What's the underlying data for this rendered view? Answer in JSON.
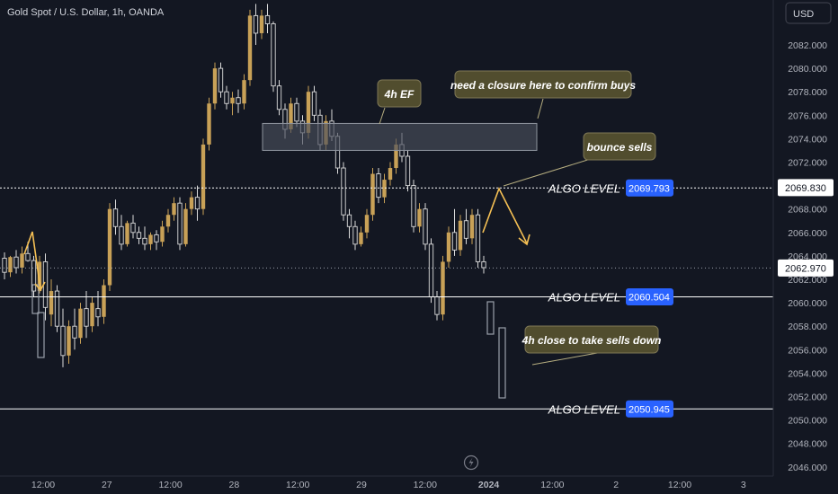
{
  "header": {
    "symbol_title": "Gold Spot / U.S. Dollar, 1h, OANDA"
  },
  "price_scale": {
    "currency": "USD",
    "ticks": [
      "2082.000",
      "2080.000",
      "2078.000",
      "2076.000",
      "2074.000",
      "2072.000",
      "2070.000",
      "2068.000",
      "2066.000",
      "2064.000",
      "2062.000",
      "2060.000",
      "2058.000",
      "2056.000",
      "2054.000",
      "2052.000",
      "2050.000",
      "2048.000",
      "2046.000"
    ],
    "crosshair_price": "2069.830",
    "last_price": "2062.970"
  },
  "time_axis": {
    "ticks": [
      "12:00",
      "27",
      "12:00",
      "28",
      "12:00",
      "29",
      "12:00",
      "2024",
      "12:00",
      "2",
      "12:00",
      "3"
    ]
  },
  "algo_levels": [
    {
      "label": "ALGO LEVEL",
      "value": "2069.793",
      "price": 2069.793
    },
    {
      "label": "ALGO LEVEL",
      "value": "2060.504",
      "price": 2060.504
    },
    {
      "label": "ALGO LEVEL",
      "value": "2050.945",
      "price": 2050.945
    }
  ],
  "zone": {
    "label": "4h EF",
    "top": 2075.3,
    "bottom": 2073.0
  },
  "callouts": {
    "ef": "4h EF",
    "closure": "need a closure here to confirm buys",
    "bounce": "bounce sells",
    "close_down": "4h close to take sells down"
  },
  "colors": {
    "background": "#131722",
    "bull_candle": "#c8a157",
    "bear_candle": "#dbdbdb",
    "level_line": "#ffffff",
    "badge": "#2962ff",
    "callout_bg": "#514d2e",
    "arrow": "#f5c054"
  },
  "chart_data": {
    "type": "candlestick",
    "ylim": [
      2045.5,
      2085.7
    ],
    "candles": [
      [
        2063.8,
        2064.3,
        2062.0,
        2062.6
      ],
      [
        2062.6,
        2064.0,
        2062.2,
        2063.9
      ],
      [
        2063.9,
        2064.5,
        2062.5,
        2063.0
      ],
      [
        2063.0,
        2064.8,
        2062.5,
        2064.2
      ],
      [
        2064.2,
        2065.2,
        2063.5,
        2063.6
      ],
      [
        2063.6,
        2064.0,
        2060.5,
        2061.0
      ],
      [
        2061.0,
        2064.0,
        2060.8,
        2063.5
      ],
      [
        2063.5,
        2064.2,
        2058.5,
        2059.6
      ],
      [
        2059.0,
        2062.0,
        2058.0,
        2061.0
      ],
      [
        2061.0,
        2061.5,
        2057.5,
        2058.0
      ],
      [
        2058.0,
        2059.5,
        2054.5,
        2055.5
      ],
      [
        2055.5,
        2058.5,
        2054.8,
        2058.0
      ],
      [
        2058.0,
        2059.5,
        2056.0,
        2057.0
      ],
      [
        2057.0,
        2060.0,
        2056.5,
        2059.5
      ],
      [
        2059.5,
        2061.0,
        2057.0,
        2058.0
      ],
      [
        2058.0,
        2060.5,
        2057.5,
        2060.0
      ],
      [
        2059.5,
        2061.0,
        2058.0,
        2058.8
      ],
      [
        2058.8,
        2062.0,
        2058.2,
        2061.5
      ],
      [
        2061.5,
        2068.5,
        2061.0,
        2068.0
      ],
      [
        2068.0,
        2068.8,
        2065.8,
        2066.5
      ],
      [
        2066.5,
        2067.5,
        2064.5,
        2065.0
      ],
      [
        2065.0,
        2067.0,
        2064.8,
        2066.8
      ],
      [
        2066.8,
        2067.5,
        2065.5,
        2066.0
      ],
      [
        2066.0,
        2066.5,
        2065.0,
        2065.5
      ],
      [
        2065.5,
        2066.5,
        2064.5,
        2065.0
      ],
      [
        2065.0,
        2066.0,
        2064.5,
        2065.8
      ],
      [
        2065.8,
        2066.2,
        2064.5,
        2065.2
      ],
      [
        2065.2,
        2067.0,
        2064.8,
        2066.5
      ],
      [
        2066.5,
        2068.0,
        2066.0,
        2067.5
      ],
      [
        2067.5,
        2069.0,
        2067.0,
        2068.5
      ],
      [
        2068.5,
        2069.0,
        2064.5,
        2065.0
      ],
      [
        2065.0,
        2068.5,
        2064.8,
        2068.0
      ],
      [
        2068.0,
        2069.5,
        2067.5,
        2069.0
      ],
      [
        2069.0,
        2070.0,
        2067.0,
        2068.0
      ],
      [
        2068.0,
        2074.0,
        2067.5,
        2073.5
      ],
      [
        2073.5,
        2077.5,
        2073.0,
        2077.0
      ],
      [
        2077.0,
        2080.5,
        2076.5,
        2080.0
      ],
      [
        2080.0,
        2080.5,
        2077.5,
        2078.0
      ],
      [
        2078.0,
        2078.5,
        2076.5,
        2077.0
      ],
      [
        2077.0,
        2078.0,
        2076.0,
        2077.5
      ],
      [
        2077.5,
        2078.2,
        2076.2,
        2077.0
      ],
      [
        2077.0,
        2079.5,
        2076.5,
        2079.0
      ],
      [
        2079.0,
        2085.0,
        2078.5,
        2084.5
      ],
      [
        2084.5,
        2085.5,
        2082.0,
        2083.0
      ],
      [
        2083.0,
        2085.0,
        2082.5,
        2084.5
      ],
      [
        2084.5,
        2085.5,
        2083.0,
        2083.8
      ],
      [
        2083.8,
        2084.0,
        2078.0,
        2078.5
      ],
      [
        2078.5,
        2079.0,
        2076.0,
        2076.5
      ],
      [
        2076.5,
        2077.0,
        2074.0,
        2074.8
      ],
      [
        2074.8,
        2077.5,
        2074.5,
        2077.0
      ],
      [
        2077.0,
        2077.5,
        2075.0,
        2075.5
      ],
      [
        2075.5,
        2076.0,
        2073.5,
        2074.5
      ],
      [
        2074.5,
        2078.5,
        2074.0,
        2078.0
      ],
      [
        2078.0,
        2078.5,
        2075.5,
        2076.0
      ],
      [
        2076.0,
        2076.5,
        2073.0,
        2073.5
      ],
      [
        2073.5,
        2076.0,
        2073.0,
        2075.5
      ],
      [
        2075.5,
        2076.5,
        2073.8,
        2074.2
      ],
      [
        2074.2,
        2074.5,
        2071.0,
        2071.5
      ],
      [
        2071.5,
        2072.0,
        2067.0,
        2067.5
      ],
      [
        2067.5,
        2068.0,
        2065.5,
        2066.5
      ],
      [
        2066.5,
        2067.0,
        2064.5,
        2065.0
      ],
      [
        2065.0,
        2066.5,
        2064.8,
        2066.0
      ],
      [
        2066.0,
        2068.0,
        2065.5,
        2067.5
      ],
      [
        2067.5,
        2071.5,
        2067.0,
        2071.0
      ],
      [
        2071.0,
        2071.5,
        2068.5,
        2069.0
      ],
      [
        2069.0,
        2071.0,
        2068.5,
        2070.5
      ],
      [
        2070.5,
        2072.0,
        2070.0,
        2071.5
      ],
      [
        2071.5,
        2074.0,
        2071.0,
        2073.5
      ],
      [
        2073.5,
        2074.5,
        2072.0,
        2072.5
      ],
      [
        2072.5,
        2073.0,
        2069.5,
        2070.0
      ],
      [
        2070.0,
        2070.5,
        2066.0,
        2066.5
      ],
      [
        2066.5,
        2068.5,
        2066.0,
        2068.0
      ],
      [
        2068.0,
        2068.5,
        2064.5,
        2065.0
      ],
      [
        2065.0,
        2065.5,
        2060.0,
        2060.5
      ],
      [
        2060.5,
        2061.0,
        2058.5,
        2059.0
      ],
      [
        2059.0,
        2064.0,
        2058.5,
        2063.5
      ],
      [
        2063.5,
        2066.5,
        2063.0,
        2066.0
      ],
      [
        2066.0,
        2068.0,
        2064.0,
        2064.5
      ],
      [
        2064.5,
        2067.5,
        2064.0,
        2067.0
      ],
      [
        2067.0,
        2068.0,
        2065.0,
        2065.5
      ],
      [
        2065.5,
        2068.0,
        2065.0,
        2067.5
      ],
      [
        2067.5,
        2068.0,
        2063.0,
        2063.5
      ],
      [
        2063.5,
        2064.0,
        2062.5,
        2063.0
      ]
    ]
  }
}
